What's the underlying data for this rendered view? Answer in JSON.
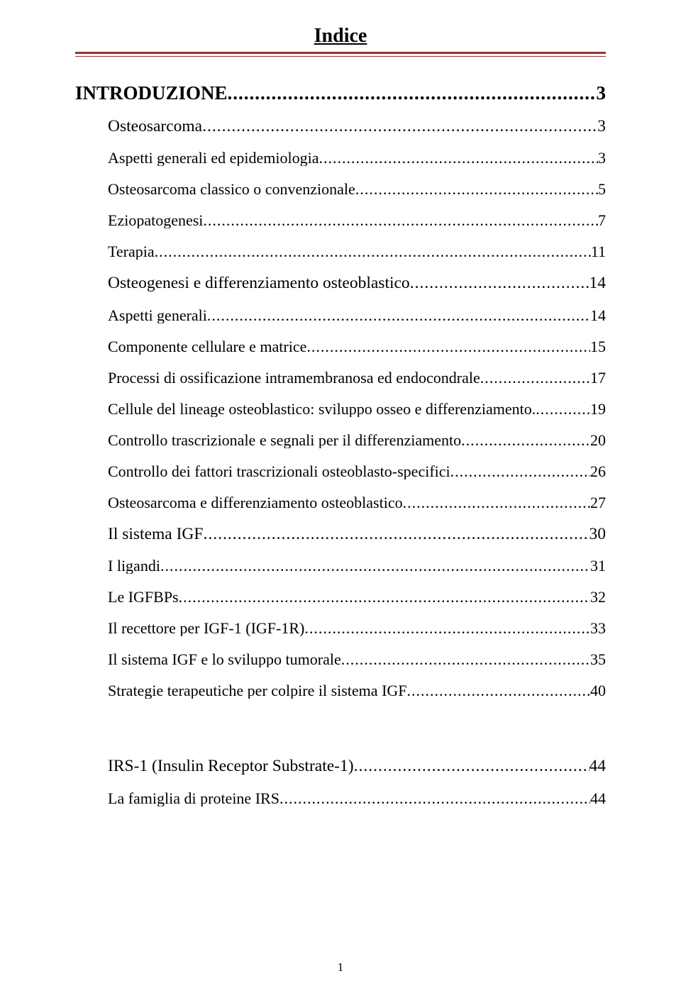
{
  "title": "Indice",
  "rule_color": "#953735",
  "text_color": "#000000",
  "background_color": "#ffffff",
  "font_family": "Times New Roman",
  "page_number": "1",
  "entries": [
    {
      "label": "INTRODUZIONE",
      "page": "3",
      "level": 1
    },
    {
      "label": "Osteosarcoma",
      "page": "3",
      "level": 2
    },
    {
      "label": "Aspetti generali ed epidemiologia",
      "page": "3",
      "level": 3
    },
    {
      "label": "Osteosarcoma classico o convenzionale",
      "page": "5",
      "level": 3
    },
    {
      "label": "Eziopatogenesi",
      "page": "7",
      "level": 3
    },
    {
      "label": "Terapia",
      "page": "11",
      "level": 3
    },
    {
      "label": "Osteogenesi e differenziamento osteoblastico",
      "page": "14",
      "level": 2
    },
    {
      "label": "Aspetti generali",
      "page": "14",
      "level": 3
    },
    {
      "label": "Componente cellulare e matrice",
      "page": "15",
      "level": 3
    },
    {
      "label": "Processi di ossificazione intramembranosa ed endocondrale",
      "page": "17",
      "level": 3
    },
    {
      "label": "Cellule del lineage osteoblastico: sviluppo osseo e differenziamento.",
      "page": "19",
      "level": 3
    },
    {
      "label": "Controllo trascrizionale e segnali per il differenziamento",
      "page": "20",
      "level": 3
    },
    {
      "label": "Controllo dei fattori trascrizionali osteoblasto-specifici",
      "page": "26",
      "level": 3
    },
    {
      "label": "Osteosarcoma e differenziamento osteoblastico",
      "page": "27",
      "level": 3
    },
    {
      "label": "Il sistema IGF",
      "page": "30",
      "level": 2
    },
    {
      "label": "I ligandi",
      "page": "31",
      "level": 3
    },
    {
      "label": "Le IGFBPs",
      "page": "32",
      "level": 3
    },
    {
      "label": "Il recettore per IGF-1 (IGF-1R)",
      "page": "33",
      "level": 3
    },
    {
      "label": "Il sistema IGF e lo sviluppo tumorale",
      "page": "35",
      "level": 3
    },
    {
      "label": "Strategie terapeutiche per colpire il sistema IGF",
      "page": "40",
      "level": 3
    },
    {
      "label": "IRS-1 (Insulin Receptor Substrate-1)",
      "page": "44",
      "level": 2,
      "extra_top": true
    },
    {
      "label": "La famiglia di proteine IRS",
      "page": "44",
      "level": 3
    }
  ]
}
